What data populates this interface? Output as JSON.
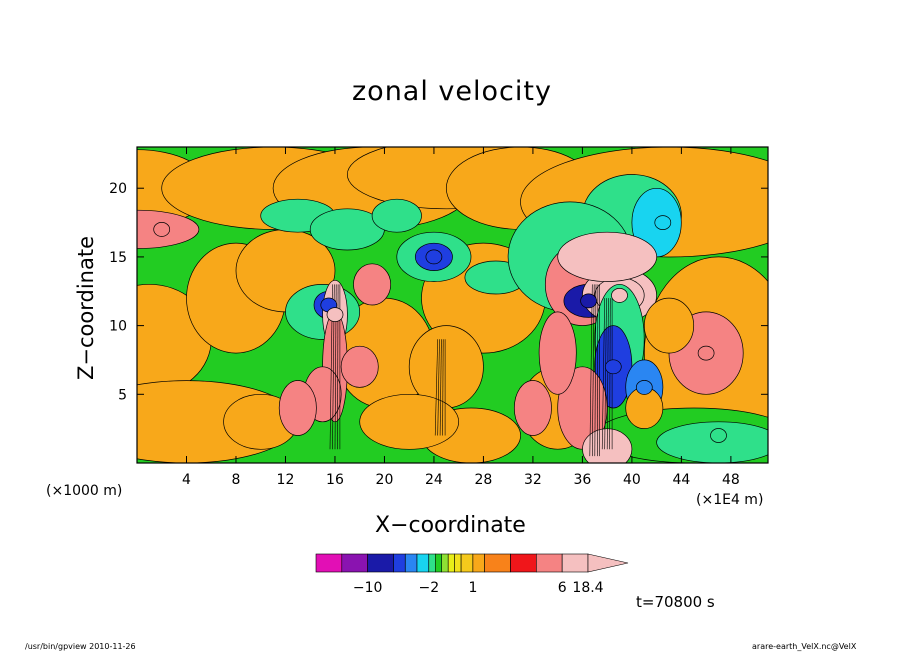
{
  "chart_data": {
    "type": "heatmap",
    "title": "zonal velocity",
    "xlabel": "X−coordinate",
    "ylabel": "Z−coordinate",
    "x_unit_left": "(×1000 m)",
    "x_unit_right": "(×1E4 m)",
    "xlim": [
      0,
      51
    ],
    "ylim": [
      0,
      23
    ],
    "x_ticks": [
      4,
      8,
      12,
      16,
      20,
      24,
      28,
      32,
      36,
      40,
      44,
      48
    ],
    "y_ticks": [
      5,
      10,
      15,
      20
    ],
    "colorbar": {
      "levels": [
        -14,
        -12,
        -10,
        -8,
        -6,
        -4,
        -2,
        -1.5,
        -1,
        -0.5,
        0,
        0.5,
        1,
        1.5,
        2,
        4,
        6,
        8,
        10,
        12,
        14,
        16,
        18.4
      ],
      "colors": [
        "#e20fb5",
        "#8a13b0",
        "#1a1aa8",
        "#1f3ee0",
        "#2a86f2",
        "#18d4f0",
        "#2fe08a",
        "#22cc22",
        "#8ee034",
        "#e8ee18",
        "#f2e11c",
        "#f5c91c",
        "#f8a81a",
        "#f8821a",
        "#f0161a",
        "#f58383",
        "#f5c0c0"
      ],
      "tick_labels": [
        "−10",
        "−2",
        "1",
        "6",
        "18.4"
      ]
    },
    "features": [
      {
        "x": 15.5,
        "z": 11.5,
        "value": -8
      },
      {
        "x": 16.0,
        "z": 10.8,
        "value": 10
      },
      {
        "x": 24.0,
        "z": 15.0,
        "value": -8
      },
      {
        "x": 36.5,
        "z": 11.8,
        "value": -10
      },
      {
        "x": 39.0,
        "z": 12.2,
        "value": 12
      },
      {
        "x": 38.5,
        "z": 7.0,
        "value": -8
      },
      {
        "x": 41.0,
        "z": 5.5,
        "value": -6
      },
      {
        "x": 42.5,
        "z": 17.5,
        "value": -4
      },
      {
        "x": 46.0,
        "z": 8.0,
        "value": 4
      },
      {
        "x": 2.0,
        "z": 17.0,
        "value": 4
      },
      {
        "x": 47.0,
        "z": 2.0,
        "value": -2
      }
    ]
  },
  "time_label": "t=70800 s",
  "footer_left": "/usr/bin/gpview  2010-11-26",
  "footer_right": "arare-earth_VelX.nc@VelX"
}
